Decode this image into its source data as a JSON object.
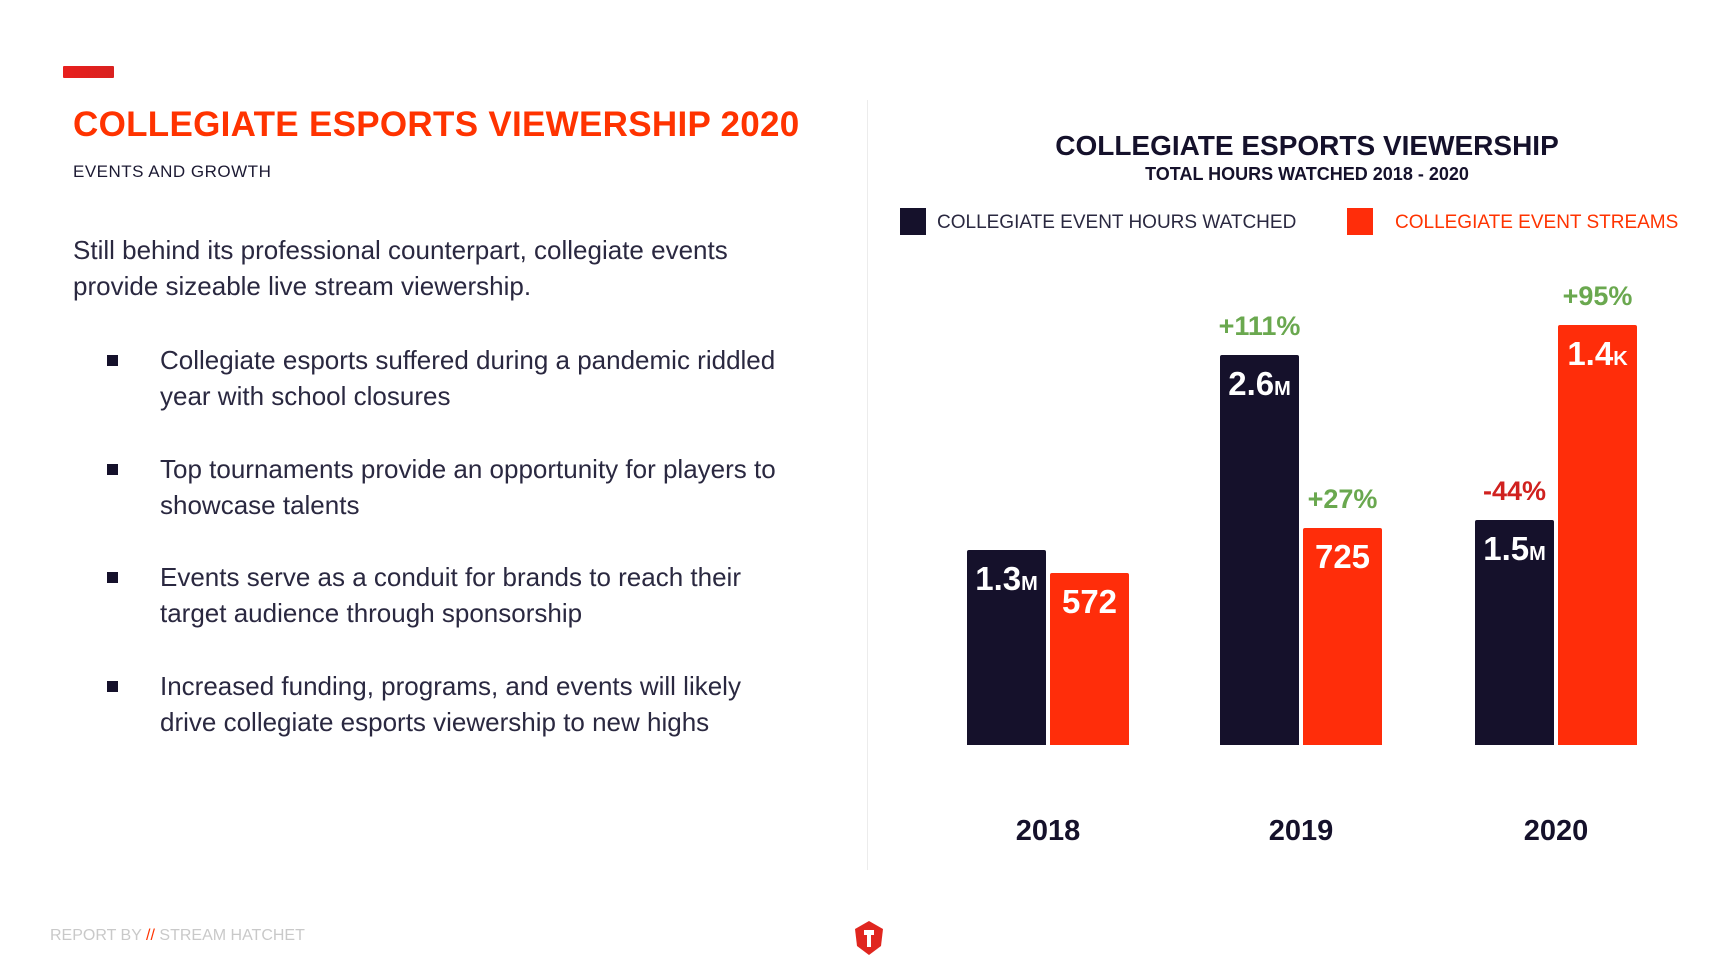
{
  "header": {
    "title": "COLLEGIATE ESPORTS VIEWERSHIP 2020",
    "subtitle": "EVENTS AND GROWTH"
  },
  "intro": "Still behind its professional counterpart, collegiate events provide sizeable live stream viewership.",
  "bullets": [
    "Collegiate esports suffered during a pandemic riddled year with school closures",
    "Top tournaments provide an opportunity for players to showcase talents",
    "Events serve as a conduit for brands to reach their target audience through sponsorship",
    "Increased funding, programs, and events will likely drive collegiate esports viewership to new highs"
  ],
  "footer": {
    "prefix": "REPORT BY",
    "separator": "//",
    "brand": "STREAM HATCHET",
    "logo_icon": "hatchet-shield-logo"
  },
  "colors": {
    "accent": "#ff3300",
    "hours": "#15112b",
    "streams": "#ff2d0a",
    "growth_positive": "#6aa84f",
    "growth_negative": "#d0211f"
  },
  "chart_data": {
    "type": "bar",
    "title": "COLLEGIATE ESPORTS VIEWERSHIP",
    "subtitle": "TOTAL HOURS WATCHED 2018 - 2020",
    "legend_position": "top",
    "grid": false,
    "categories": [
      "2018",
      "2019",
      "2020"
    ],
    "series": [
      {
        "name": "COLLEGIATE EVENT HOURS WATCHED",
        "values": [
          1300000,
          2600000,
          1500000
        ],
        "labels": [
          [
            "1.3",
            "M"
          ],
          [
            "2.6",
            "M"
          ],
          [
            "1.5",
            "M"
          ]
        ],
        "growth": [
          "",
          "+111%",
          "-44%"
        ]
      },
      {
        "name": "COLLEGIATE EVENT STREAMS",
        "values": [
          572,
          725,
          1400
        ],
        "labels": [
          [
            "572",
            ""
          ],
          [
            "725",
            ""
          ],
          [
            "1.4",
            "K"
          ]
        ],
        "growth": [
          "",
          "+27%",
          "+95%"
        ]
      }
    ]
  }
}
